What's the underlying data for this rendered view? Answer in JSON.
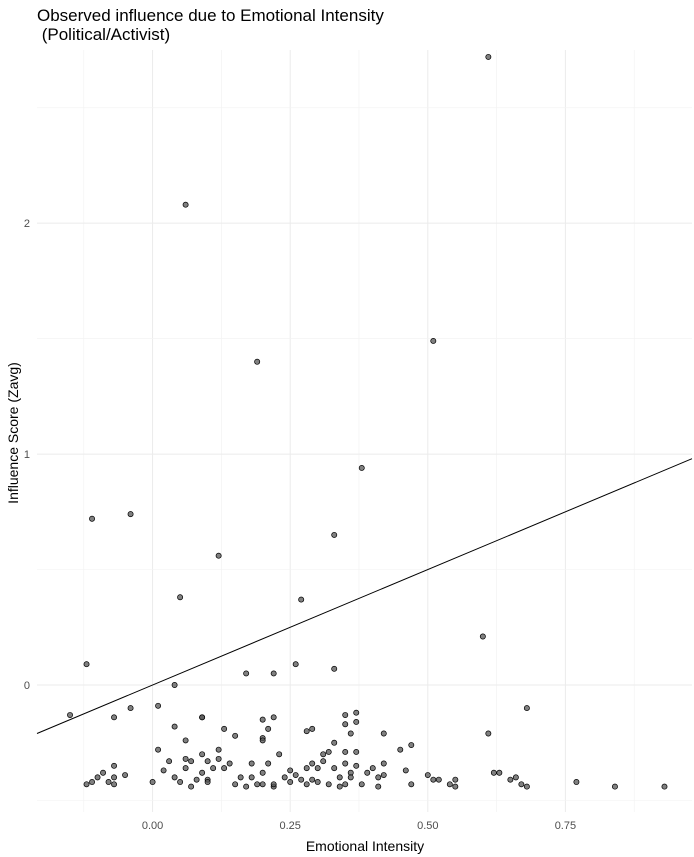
{
  "chart_data": {
    "type": "scatter",
    "title_line1": "Observed influence due to Emotional Intensity",
    "title_line2": " (Political/Activist)",
    "xlabel": "Emotional Intensity",
    "ylabel": "Influence Score (Zavg)",
    "xlim": [
      -0.21,
      0.98
    ],
    "ylim": [
      -0.55,
      2.75
    ],
    "x_ticks": [
      0.0,
      0.25,
      0.5,
      0.75
    ],
    "x_tick_labels": [
      "0.00",
      "0.25",
      "0.50",
      "0.75"
    ],
    "y_ticks": [
      0,
      1,
      2
    ],
    "y_tick_labels": [
      "0",
      "1",
      "2"
    ],
    "grid": true,
    "trend_line": {
      "intercept": 0.0,
      "slope": 1.0
    },
    "points": [
      [
        0.61,
        2.72
      ],
      [
        0.06,
        2.08
      ],
      [
        0.51,
        1.49
      ],
      [
        0.19,
        1.4
      ],
      [
        0.38,
        0.94
      ],
      [
        -0.11,
        0.72
      ],
      [
        -0.04,
        0.74
      ],
      [
        0.33,
        0.65
      ],
      [
        0.12,
        0.56
      ],
      [
        0.05,
        0.38
      ],
      [
        0.27,
        0.37
      ],
      [
        0.6,
        0.21
      ],
      [
        -0.12,
        0.09
      ],
      [
        0.26,
        0.09
      ],
      [
        0.33,
        0.07
      ],
      [
        0.17,
        0.05
      ],
      [
        0.22,
        0.05
      ],
      [
        0.04,
        0.0
      ],
      [
        -0.15,
        -0.13
      ],
      [
        -0.07,
        -0.14
      ],
      [
        -0.04,
        -0.1
      ],
      [
        0.01,
        -0.09
      ],
      [
        0.68,
        -0.1
      ],
      [
        0.09,
        -0.14
      ],
      [
        0.09,
        -0.14
      ],
      [
        0.2,
        -0.15
      ],
      [
        0.22,
        -0.14
      ],
      [
        0.35,
        -0.13
      ],
      [
        0.37,
        -0.12
      ],
      [
        0.04,
        -0.18
      ],
      [
        0.13,
        -0.19
      ],
      [
        0.21,
        -0.19
      ],
      [
        0.29,
        -0.19
      ],
      [
        0.28,
        -0.2
      ],
      [
        0.35,
        -0.17
      ],
      [
        0.37,
        -0.16
      ],
      [
        0.36,
        -0.21
      ],
      [
        0.42,
        -0.21
      ],
      [
        0.61,
        -0.21
      ],
      [
        0.2,
        -0.23
      ],
      [
        0.2,
        -0.24
      ],
      [
        0.06,
        -0.24
      ],
      [
        0.15,
        -0.22
      ],
      [
        0.33,
        -0.25
      ],
      [
        0.47,
        -0.26
      ],
      [
        0.01,
        -0.28
      ],
      [
        0.09,
        -0.3
      ],
      [
        0.12,
        -0.28
      ],
      [
        0.23,
        -0.3
      ],
      [
        0.31,
        -0.3
      ],
      [
        0.32,
        -0.29
      ],
      [
        0.35,
        -0.29
      ],
      [
        0.37,
        -0.29
      ],
      [
        0.45,
        -0.28
      ],
      [
        0.03,
        -0.33
      ],
      [
        0.06,
        -0.32
      ],
      [
        0.07,
        -0.33
      ],
      [
        0.1,
        -0.33
      ],
      [
        0.12,
        -0.32
      ],
      [
        0.13,
        -0.36
      ],
      [
        0.11,
        -0.36
      ],
      [
        0.14,
        -0.34
      ],
      [
        0.18,
        -0.34
      ],
      [
        0.21,
        -0.34
      ],
      [
        0.28,
        -0.36
      ],
      [
        0.29,
        -0.34
      ],
      [
        0.31,
        -0.33
      ],
      [
        0.33,
        -0.36
      ],
      [
        0.35,
        -0.34
      ],
      [
        0.37,
        -0.35
      ],
      [
        0.4,
        -0.36
      ],
      [
        0.42,
        -0.34
      ],
      [
        -0.07,
        -0.35
      ],
      [
        0.02,
        -0.37
      ],
      [
        0.06,
        -0.36
      ],
      [
        0.09,
        -0.38
      ],
      [
        0.2,
        -0.38
      ],
      [
        0.25,
        -0.37
      ],
      [
        0.3,
        -0.36
      ],
      [
        0.36,
        -0.38
      ],
      [
        0.39,
        -0.38
      ],
      [
        -0.09,
        -0.38
      ],
      [
        -0.1,
        -0.4
      ],
      [
        -0.07,
        -0.4
      ],
      [
        -0.05,
        -0.39
      ],
      [
        0.04,
        -0.4
      ],
      [
        0.08,
        -0.41
      ],
      [
        0.1,
        -0.41
      ],
      [
        0.16,
        -0.4
      ],
      [
        0.18,
        -0.4
      ],
      [
        0.24,
        -0.4
      ],
      [
        0.26,
        -0.39
      ],
      [
        0.27,
        -0.41
      ],
      [
        0.29,
        -0.41
      ],
      [
        0.34,
        -0.4
      ],
      [
        0.36,
        -0.4
      ],
      [
        0.41,
        -0.4
      ],
      [
        0.42,
        -0.39
      ],
      [
        0.46,
        -0.37
      ],
      [
        0.5,
        -0.39
      ],
      [
        0.51,
        -0.41
      ],
      [
        0.52,
        -0.41
      ],
      [
        0.55,
        -0.41
      ],
      [
        0.62,
        -0.38
      ],
      [
        0.63,
        -0.38
      ],
      [
        0.65,
        -0.41
      ],
      [
        0.66,
        -0.4
      ],
      [
        -0.12,
        -0.43
      ],
      [
        -0.11,
        -0.42
      ],
      [
        -0.08,
        -0.42
      ],
      [
        -0.07,
        -0.43
      ],
      [
        0.0,
        -0.42
      ],
      [
        0.05,
        -0.42
      ],
      [
        0.07,
        -0.44
      ],
      [
        0.1,
        -0.42
      ],
      [
        0.15,
        -0.43
      ],
      [
        0.17,
        -0.44
      ],
      [
        0.19,
        -0.43
      ],
      [
        0.2,
        -0.43
      ],
      [
        0.22,
        -0.44
      ],
      [
        0.22,
        -0.43
      ],
      [
        0.25,
        -0.42
      ],
      [
        0.28,
        -0.43
      ],
      [
        0.3,
        -0.42
      ],
      [
        0.32,
        -0.43
      ],
      [
        0.34,
        -0.44
      ],
      [
        0.35,
        -0.43
      ],
      [
        0.38,
        -0.43
      ],
      [
        0.41,
        -0.44
      ],
      [
        0.47,
        -0.43
      ],
      [
        0.54,
        -0.43
      ],
      [
        0.55,
        -0.44
      ],
      [
        0.67,
        -0.43
      ],
      [
        0.68,
        -0.44
      ],
      [
        0.77,
        -0.42
      ],
      [
        0.84,
        -0.44
      ],
      [
        0.93,
        -0.44
      ]
    ]
  }
}
